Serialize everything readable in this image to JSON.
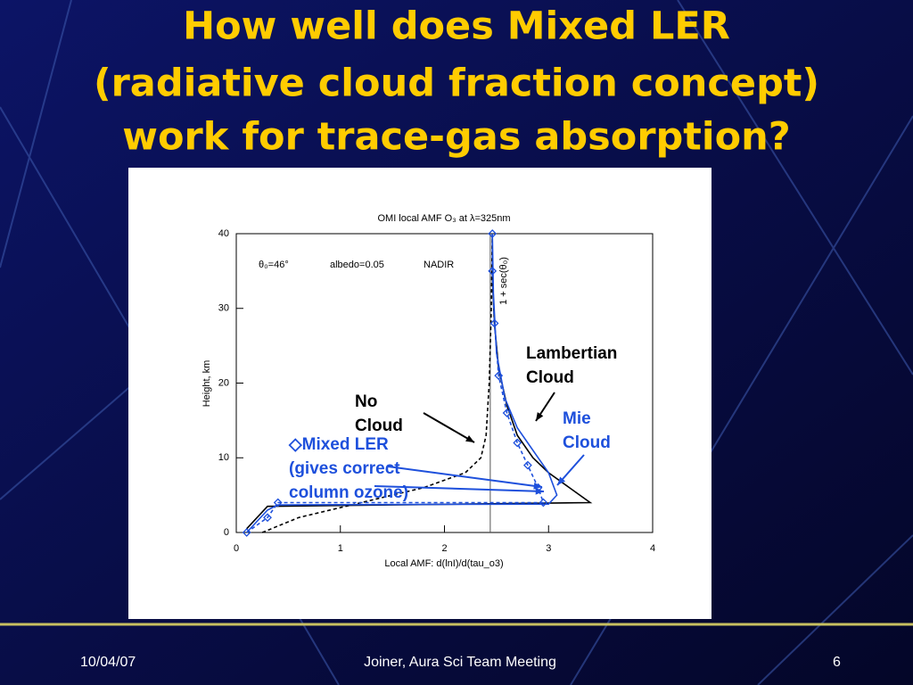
{
  "title": [
    "How well does Mixed LER",
    "(radiative cloud fraction concept)",
    "work for trace-gas absorption?"
  ],
  "chart_data": {
    "type": "line",
    "title": "OMI local AMF   O₃ at  λ=325nm",
    "x_label": "Local AMF: d(lnI)/d(tau_o3)",
    "y_label": "Height, km",
    "xlim": [
      0,
      4
    ],
    "xticks": [
      0,
      1,
      2,
      3,
      4
    ],
    "ylim": [
      0,
      40
    ],
    "yticks": [
      0,
      10,
      20,
      30,
      40
    ],
    "annotations": [
      "θ₀=46°",
      "albedo=0.05",
      "NADIR"
    ],
    "reference_line": {
      "x": 2.44,
      "label": "1 + sec(θ₀)"
    },
    "series": [
      {
        "name": "No Cloud",
        "color": "#000000",
        "dash": true,
        "x": [
          0.25,
          0.6,
          1.2,
          1.8,
          2.2,
          2.35,
          2.4,
          2.43,
          2.45,
          2.46
        ],
        "values": [
          0,
          2,
          4,
          6,
          8,
          10,
          13,
          20,
          30,
          40
        ]
      },
      {
        "name": "Lambertian Cloud",
        "color": "#000000",
        "dash": false,
        "x": [
          0.1,
          0.3,
          3.4,
          3.2,
          3.0,
          2.85,
          2.7,
          2.6,
          2.52,
          2.48,
          2.46,
          2.46
        ],
        "values": [
          0.5,
          3.5,
          4,
          6,
          8,
          10,
          13,
          17,
          22,
          28,
          34,
          40
        ]
      },
      {
        "name": "Mie Cloud",
        "color": "#1e50dc",
        "dash": false,
        "x": [
          0.1,
          0.3,
          0.4,
          3.0,
          3.08,
          3.0,
          2.85,
          2.7,
          2.58,
          2.5,
          2.47,
          2.46
        ],
        "values": [
          0,
          3,
          3.7,
          3.8,
          5,
          8,
          11,
          14,
          18,
          24,
          32,
          40
        ]
      },
      {
        "name": "Mixed LER",
        "color": "#1e50dc",
        "dash": true,
        "marker": "diamond",
        "x": [
          0.1,
          0.3,
          0.4,
          2.95,
          2.9,
          2.8,
          2.7,
          2.6,
          2.52,
          2.48,
          2.46,
          2.46
        ],
        "values": [
          0,
          2,
          4,
          4,
          6,
          9,
          12,
          16,
          21,
          28,
          35,
          40
        ]
      }
    ],
    "callouts": [
      {
        "lines": [
          "Lambertian",
          "Cloud"
        ],
        "color": "#000000"
      },
      {
        "lines": [
          "No",
          "Cloud"
        ],
        "color": "#000000"
      },
      {
        "lines": [
          "Mie",
          "Cloud"
        ],
        "color": "#1e50dc"
      },
      {
        "lines": [
          "◇Mixed LER",
          "(gives correct",
          "column ozone)"
        ],
        "color": "#1e50dc"
      }
    ]
  },
  "footer": {
    "date": "10/04/07",
    "center": "Joiner, Aura Sci Team Meeting",
    "page": "6"
  }
}
